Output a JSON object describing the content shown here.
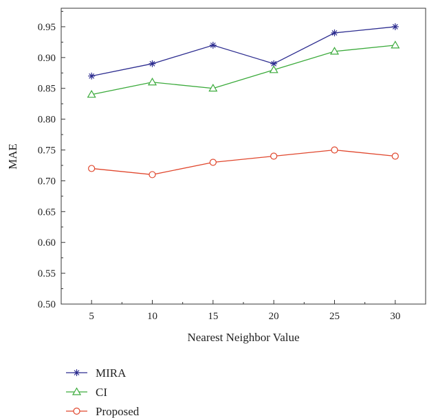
{
  "chart_data": {
    "type": "line",
    "xlabel": "Nearest Neighbor Value",
    "ylabel": "MAE",
    "x": [
      5,
      10,
      15,
      20,
      25,
      30
    ],
    "xticks": [
      "5",
      "10",
      "15",
      "20",
      "25",
      "30"
    ],
    "xlim": [
      2.5,
      32.5
    ],
    "ylim": [
      0.5,
      0.98
    ],
    "yticks": [
      "0.50",
      "0.55",
      "0.60",
      "0.65",
      "0.70",
      "0.75",
      "0.80",
      "0.85",
      "0.90",
      "0.95"
    ],
    "grid": false,
    "legend_position": "bottom-left",
    "series": [
      {
        "name": "MIRA",
        "values": [
          0.87,
          0.89,
          0.92,
          0.89,
          0.94,
          0.95
        ],
        "color": "#2b2b8f",
        "marker": "asterisk"
      },
      {
        "name": "CI",
        "values": [
          0.84,
          0.86,
          0.85,
          0.88,
          0.91,
          0.92
        ],
        "color": "#3aaa3a",
        "marker": "triangle"
      },
      {
        "name": "Proposed",
        "values": [
          0.72,
          0.71,
          0.73,
          0.74,
          0.75,
          0.74
        ],
        "color": "#e0452b",
        "marker": "circle"
      }
    ]
  }
}
